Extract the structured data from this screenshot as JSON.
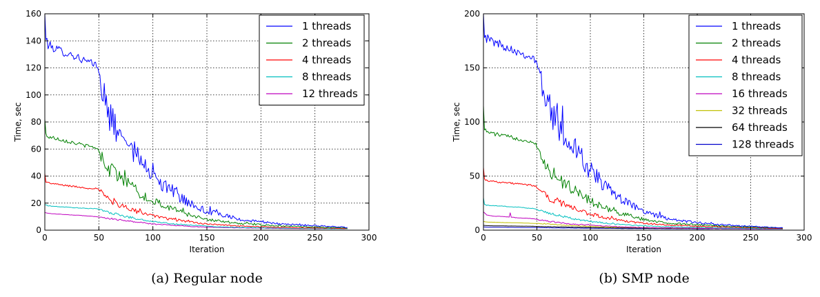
{
  "chart_data": [
    {
      "type": "line",
      "caption": "(a) Regular node",
      "xlabel": "Iteration",
      "ylabel": "Time, sec",
      "xlim": [
        0,
        300
      ],
      "ylim": [
        0,
        160
      ],
      "xticks": [
        0,
        50,
        100,
        150,
        200,
        250,
        300
      ],
      "yticks": [
        0,
        20,
        40,
        60,
        80,
        100,
        120,
        140,
        160
      ],
      "grid": true,
      "legend_position": "top-right",
      "series": [
        {
          "name": "1 threads",
          "color": "#0000ff",
          "noise": 0.1,
          "x": [
            0,
            1,
            3,
            10,
            20,
            30,
            40,
            48,
            52,
            56,
            60,
            65,
            70,
            80,
            90,
            100,
            110,
            120,
            130,
            140,
            150,
            160,
            170,
            180,
            200,
            220,
            240,
            260,
            280
          ],
          "y": [
            160,
            142,
            137,
            134,
            131,
            128,
            124,
            122,
            110,
            96,
            85,
            75,
            70,
            60,
            50,
            40,
            33,
            27,
            22,
            18,
            14,
            12,
            10,
            8,
            6,
            4.5,
            3.5,
            3,
            2
          ]
        },
        {
          "name": "2 threads",
          "color": "#008000",
          "noise": 0.09,
          "x": [
            0,
            1,
            3,
            10,
            20,
            30,
            40,
            48,
            52,
            56,
            60,
            70,
            80,
            90,
            100,
            110,
            120,
            130,
            140,
            150,
            160,
            180,
            200,
            220,
            240,
            260,
            280
          ],
          "y": [
            82,
            71,
            69,
            68,
            66,
            64,
            62,
            61,
            55,
            50,
            45,
            38,
            32,
            26,
            22,
            18,
            15,
            12,
            10,
            8,
            7,
            5,
            4,
            3,
            2.5,
            2,
            1.5
          ]
        },
        {
          "name": "4 threads",
          "color": "#ff0000",
          "noise": 0.08,
          "x": [
            0,
            1,
            3,
            10,
            20,
            30,
            40,
            48,
            52,
            56,
            60,
            70,
            80,
            90,
            100,
            110,
            120,
            130,
            140,
            150,
            160,
            180,
            200,
            220,
            240,
            260,
            280
          ],
          "y": [
            42,
            36,
            35,
            34,
            33,
            32,
            31,
            31,
            28,
            25,
            22,
            18.5,
            15,
            12.5,
            10.5,
            9,
            7.5,
            6.5,
            5.5,
            4.5,
            4,
            3,
            2.5,
            2,
            1.7,
            1.5,
            1.2
          ]
        },
        {
          "name": "8 threads",
          "color": "#00bfbf",
          "noise": 0.05,
          "x": [
            0,
            3,
            10,
            20,
            30,
            40,
            48,
            52,
            60,
            70,
            80,
            90,
            100,
            110,
            120,
            130,
            140,
            150,
            160,
            180,
            200,
            220,
            240,
            260,
            280
          ],
          "y": [
            19,
            18,
            17.5,
            17,
            16.5,
            16,
            16,
            15,
            13,
            11,
            9,
            7.5,
            6.5,
            5.5,
            4.5,
            4,
            3.5,
            3,
            2.5,
            2,
            1.7,
            1.5,
            1.2,
            1.1,
            1
          ]
        },
        {
          "name": "12 threads",
          "color": "#bf00bf",
          "noise": 0.05,
          "x": [
            0,
            3,
            10,
            20,
            30,
            40,
            48,
            52,
            60,
            70,
            80,
            90,
            100,
            110,
            120,
            130,
            140,
            150,
            160,
            180,
            200,
            220,
            240,
            260,
            280
          ],
          "y": [
            13,
            12.5,
            12,
            11.5,
            11,
            10.5,
            10,
            9.5,
            8.5,
            7.5,
            6.5,
            5.5,
            4.5,
            4,
            3.5,
            3,
            2.5,
            2.2,
            2,
            1.7,
            1.5,
            1.2,
            1.1,
            1,
            1
          ]
        }
      ]
    },
    {
      "type": "line",
      "caption": "(b) SMP node",
      "xlabel": "Iteration",
      "ylabel": "Time, sec",
      "xlim": [
        0,
        300
      ],
      "ylim": [
        0,
        200
      ],
      "xticks": [
        0,
        50,
        100,
        150,
        200,
        250,
        300
      ],
      "yticks": [
        0,
        50,
        100,
        150,
        200
      ],
      "grid": true,
      "legend_position": "top-right",
      "series": [
        {
          "name": "1 threads",
          "color": "#0000ff",
          "noise": 0.1,
          "x": [
            0,
            1,
            3,
            10,
            20,
            30,
            40,
            48,
            52,
            56,
            60,
            70,
            80,
            90,
            100,
            110,
            120,
            130,
            140,
            150,
            160,
            170,
            180,
            200,
            220,
            240,
            260,
            280
          ],
          "y": [
            200,
            182,
            177,
            174,
            170,
            166,
            162,
            158,
            145,
            130,
            118,
            100,
            82,
            68,
            55,
            44,
            36,
            28,
            22,
            17,
            14,
            11,
            9,
            7,
            5,
            4,
            3,
            2
          ]
        },
        {
          "name": "2 threads",
          "color": "#008000",
          "noise": 0.09,
          "x": [
            0,
            1,
            3,
            10,
            20,
            30,
            40,
            48,
            52,
            56,
            60,
            70,
            80,
            90,
            100,
            110,
            120,
            130,
            140,
            150,
            160,
            180,
            200,
            220,
            240,
            260,
            280
          ],
          "y": [
            115,
            93,
            91,
            89,
            87,
            85,
            83,
            81,
            74,
            65,
            58,
            48,
            40,
            33,
            27,
            22,
            18,
            15,
            12,
            10,
            8,
            6,
            5,
            4,
            3,
            2.5,
            2
          ]
        },
        {
          "name": "4 threads",
          "color": "#ff0000",
          "noise": 0.08,
          "x": [
            0,
            1,
            3,
            10,
            20,
            30,
            40,
            48,
            52,
            56,
            60,
            70,
            80,
            90,
            100,
            110,
            120,
            130,
            140,
            150,
            160,
            180,
            200,
            220,
            240,
            260,
            280
          ],
          "y": [
            58,
            47,
            46,
            45,
            44,
            43,
            42,
            41,
            38,
            34,
            31,
            26,
            22,
            18,
            15,
            12.5,
            10.5,
            9,
            7.5,
            6.5,
            5.5,
            4.5,
            3.5,
            3,
            2.5,
            2,
            1.5
          ]
        },
        {
          "name": "8 threads",
          "color": "#00bfbf",
          "noise": 0.06,
          "x": [
            0,
            1,
            3,
            10,
            20,
            30,
            40,
            48,
            52,
            60,
            70,
            80,
            90,
            100,
            110,
            120,
            130,
            140,
            150,
            160,
            180,
            200,
            220,
            240,
            260,
            280
          ],
          "y": [
            30,
            24,
            23,
            22.5,
            22,
            21.5,
            20.5,
            20,
            18.5,
            16,
            13.5,
            11.5,
            9.5,
            8,
            7,
            6,
            5,
            4.5,
            4,
            3.5,
            3,
            2.5,
            2,
            1.8,
            1.5,
            1.3
          ]
        },
        {
          "name": "16 threads",
          "color": "#bf00bf",
          "noise": 0.06,
          "x": [
            0,
            3,
            10,
            20,
            24,
            25,
            26,
            30,
            40,
            48,
            52,
            60,
            70,
            80,
            90,
            100,
            110,
            120,
            130,
            140,
            150,
            160,
            180,
            200,
            220,
            240,
            260,
            280
          ],
          "y": [
            17,
            14,
            13,
            12.5,
            12,
            16,
            12,
            11.5,
            11,
            10.5,
            9.5,
            8.5,
            7,
            6,
            5,
            4.5,
            4,
            3.5,
            3,
            2.7,
            2.4,
            2.2,
            2,
            1.7,
            1.5,
            1.3,
            1.2,
            1.1
          ]
        },
        {
          "name": "32 threads",
          "color": "#bfbf00",
          "noise": 0.04,
          "x": [
            0,
            3,
            10,
            20,
            30,
            40,
            50,
            60,
            70,
            80,
            90,
            100,
            120,
            140,
            160,
            180,
            200,
            220,
            240,
            260,
            280
          ],
          "y": [
            8,
            7.5,
            7.3,
            7,
            6.8,
            6.5,
            6.2,
            5.6,
            5,
            4.4,
            3.9,
            3.5,
            2.9,
            2.5,
            2.1,
            1.9,
            1.7,
            1.5,
            1.4,
            1.3,
            1.2
          ]
        },
        {
          "name": "64 threads",
          "color": "#000000",
          "noise": 0.04,
          "x": [
            0,
            3,
            10,
            20,
            30,
            40,
            50,
            60,
            70,
            80,
            90,
            100,
            120,
            140,
            160,
            180,
            200,
            220,
            240,
            260,
            280
          ],
          "y": [
            4.5,
            4.2,
            4,
            3.9,
            3.8,
            3.7,
            3.5,
            3.2,
            3,
            2.8,
            2.6,
            2.4,
            2.1,
            1.9,
            1.7,
            1.6,
            1.5,
            1.4,
            1.3,
            1.2,
            1.1
          ]
        },
        {
          "name": "128 threads",
          "color": "#0000cc",
          "noise": 0.04,
          "x": [
            0,
            3,
            10,
            20,
            30,
            40,
            50,
            60,
            70,
            80,
            90,
            100,
            120,
            140,
            160,
            180,
            200,
            220,
            240,
            260,
            280
          ],
          "y": [
            3,
            2.8,
            2.7,
            2.6,
            2.5,
            2.4,
            2.3,
            2.2,
            2.1,
            2,
            1.9,
            1.8,
            1.6,
            1.5,
            1.4,
            1.3,
            1.2,
            1.2,
            1.1,
            1.1,
            1
          ]
        }
      ]
    }
  ]
}
